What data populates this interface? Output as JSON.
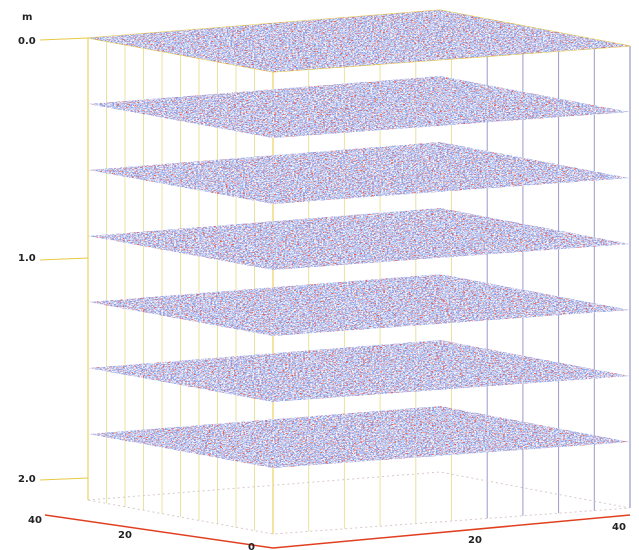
{
  "axes": {
    "unit": "m",
    "depth_ticks": [
      "0.0",
      "1.0",
      "2.0"
    ],
    "x_ticks": [
      "40",
      "20",
      "0"
    ],
    "y_ticks": [
      "20",
      "40"
    ]
  }
}
